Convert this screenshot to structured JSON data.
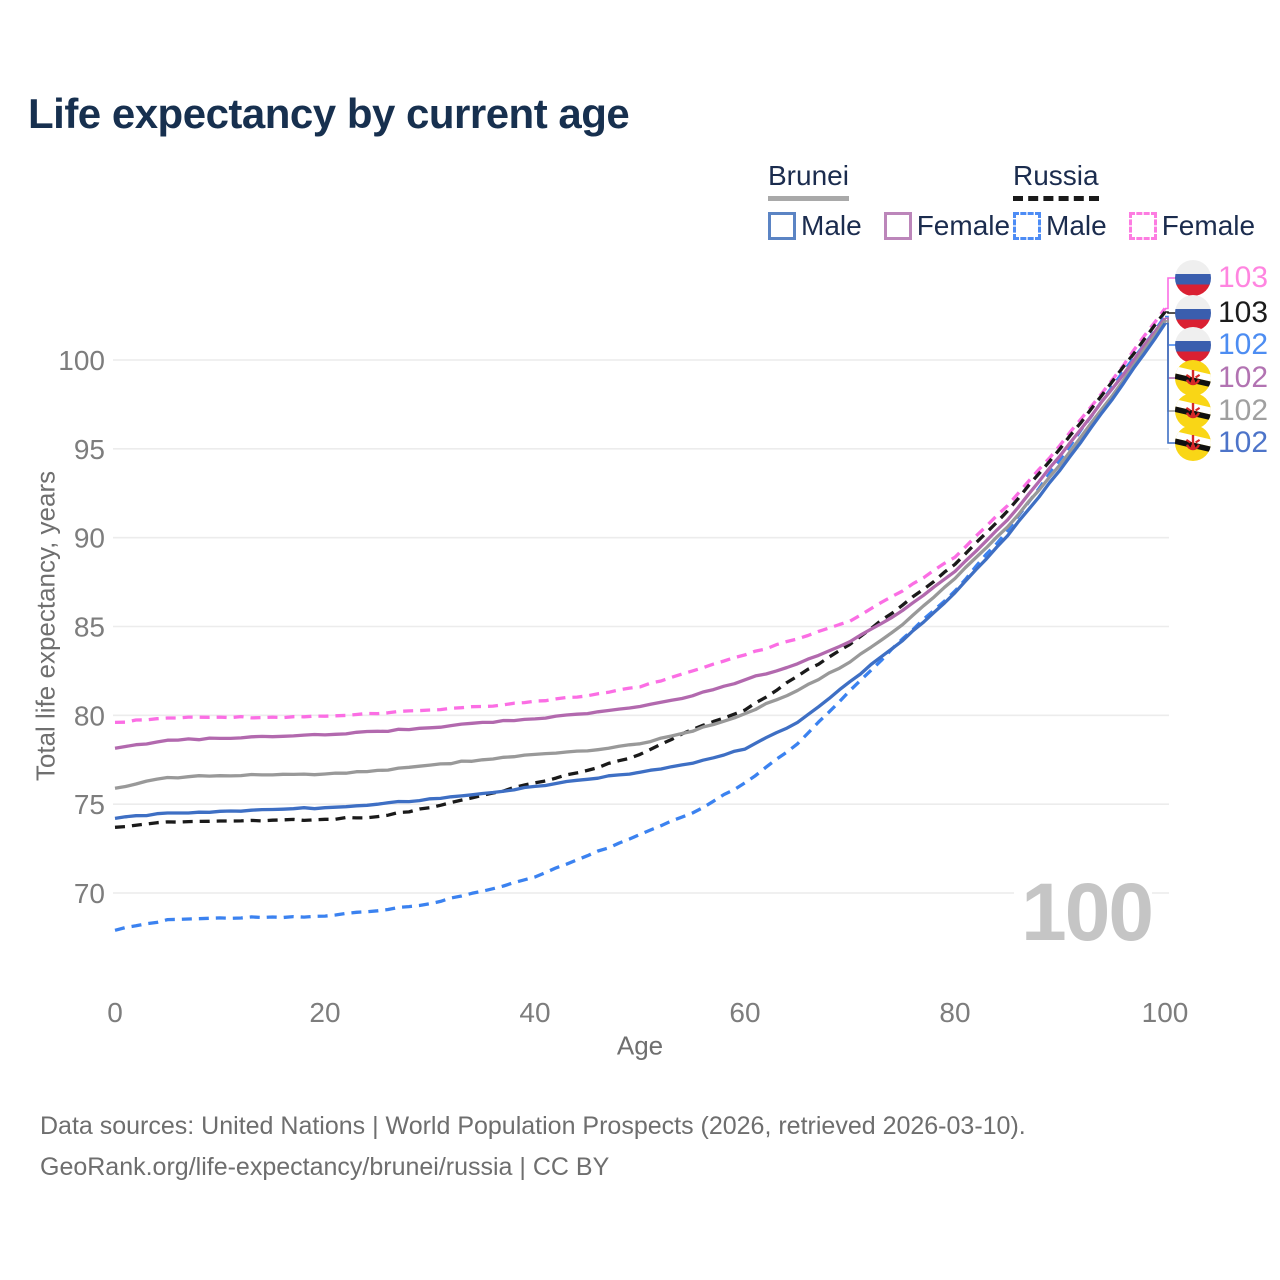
{
  "title": "Life expectancy by current age",
  "legend": {
    "groups": [
      {
        "name": "Brunei",
        "line_style": "solid",
        "underline_color": "#a9a9a9",
        "items": [
          {
            "label": "Male",
            "color": "#5b84c4"
          },
          {
            "label": "Female",
            "color": "#bc86ba"
          }
        ]
      },
      {
        "name": "Russia",
        "line_style": "dashed",
        "underline_color": "#1a1a1a",
        "items": [
          {
            "label": "Male",
            "color": "#4d8cf5"
          },
          {
            "label": "Female",
            "color": "#fd7ce1"
          }
        ]
      }
    ]
  },
  "chart_data": {
    "type": "line",
    "title": "Life expectancy by current age",
    "xlabel": "Age",
    "ylabel": "Total life expectancy, years",
    "xticks": [
      0,
      20,
      40,
      60,
      80,
      100
    ],
    "yticks": [
      70,
      75,
      80,
      85,
      90,
      95,
      100
    ],
    "xlim": [
      0,
      100
    ],
    "ylim": [
      67,
      104
    ],
    "grid": "horizontal",
    "x": [
      0,
      5,
      10,
      15,
      20,
      25,
      30,
      35,
      40,
      45,
      50,
      55,
      60,
      65,
      70,
      75,
      80,
      85,
      90,
      95,
      100
    ],
    "series": [
      {
        "name": "Russia Female",
        "country": "Russia",
        "sex": "Female",
        "color": "#fb6ee4",
        "dash": true,
        "values": [
          79.6,
          79.85,
          79.9,
          79.9,
          79.95,
          80.1,
          80.3,
          80.5,
          80.8,
          81.1,
          81.6,
          82.5,
          83.4,
          84.3,
          85.3,
          87.0,
          88.9,
          91.8,
          95.2,
          98.9,
          102.9
        ]
      },
      {
        "name": "Russia Both sexes",
        "country": "Russia",
        "sex": "Both",
        "color": "#1a1a1a",
        "dash": true,
        "values": [
          73.7,
          74.0,
          74.05,
          74.1,
          74.15,
          74.3,
          74.8,
          75.5,
          76.2,
          76.9,
          77.8,
          79.2,
          80.3,
          82.2,
          84.0,
          86.2,
          88.5,
          91.5,
          95.0,
          98.8,
          102.7
        ]
      },
      {
        "name": "Russia Male",
        "country": "Russia",
        "sex": "Male",
        "color": "#3b82f0",
        "dash": true,
        "values": [
          67.9,
          68.5,
          68.6,
          68.65,
          68.7,
          69.0,
          69.4,
          70.1,
          70.9,
          72.1,
          73.3,
          74.5,
          76.2,
          78.4,
          81.4,
          84.3,
          87.0,
          90.4,
          94.4,
          98.5,
          102.45
        ]
      },
      {
        "name": "Brunei Female",
        "country": "Brunei",
        "sex": "Female",
        "color": "#b269ae",
        "dash": false,
        "values": [
          78.15,
          78.6,
          78.7,
          78.8,
          78.9,
          79.1,
          79.3,
          79.6,
          79.8,
          80.1,
          80.5,
          81.1,
          82.0,
          82.9,
          84.15,
          85.9,
          88.1,
          91.0,
          94.6,
          98.4,
          102.35
        ]
      },
      {
        "name": "Brunei Both sexes",
        "country": "Brunei",
        "sex": "Both",
        "color": "#999999",
        "dash": false,
        "values": [
          75.9,
          76.5,
          76.6,
          76.65,
          76.7,
          76.9,
          77.2,
          77.5,
          77.8,
          78.0,
          78.4,
          79.1,
          80.1,
          81.4,
          83.0,
          85.1,
          87.7,
          90.6,
          94.1,
          98.0,
          102.2
        ]
      },
      {
        "name": "Brunei Male",
        "country": "Brunei",
        "sex": "Male",
        "color": "#3e6fc4",
        "dash": false,
        "values": [
          74.2,
          74.5,
          74.6,
          74.7,
          74.8,
          75.0,
          75.3,
          75.6,
          76.0,
          76.4,
          76.8,
          77.3,
          78.1,
          79.6,
          81.9,
          84.2,
          86.9,
          90.1,
          93.8,
          97.8,
          102.05
        ]
      }
    ],
    "end_labels": [
      {
        "series": "Russia Female",
        "value": "103",
        "flag": "russia",
        "text_color": "#ff85e0"
      },
      {
        "series": "Russia Both sexes",
        "value": "103",
        "flag": "russia",
        "text_color": "#1c1c1c"
      },
      {
        "series": "Russia Male",
        "value": "102",
        "flag": "russia",
        "text_color": "#4d8df2"
      },
      {
        "series": "Brunei Female",
        "value": "102",
        "flag": "brunei",
        "text_color": "#b273b2"
      },
      {
        "series": "Brunei Both sexes",
        "value": "102",
        "flag": "brunei",
        "text_color": "#a0a0a0"
      },
      {
        "series": "Brunei Male",
        "value": "102",
        "flag": "brunei",
        "text_color": "#4d74c9"
      }
    ],
    "watermark": "100"
  },
  "footer": {
    "line1": "Data sources: United Nations | World Population Prospects (2026, retrieved 2026-03-10).",
    "line2": "GeoRank.org/life-expectancy/brunei/russia | CC BY"
  }
}
